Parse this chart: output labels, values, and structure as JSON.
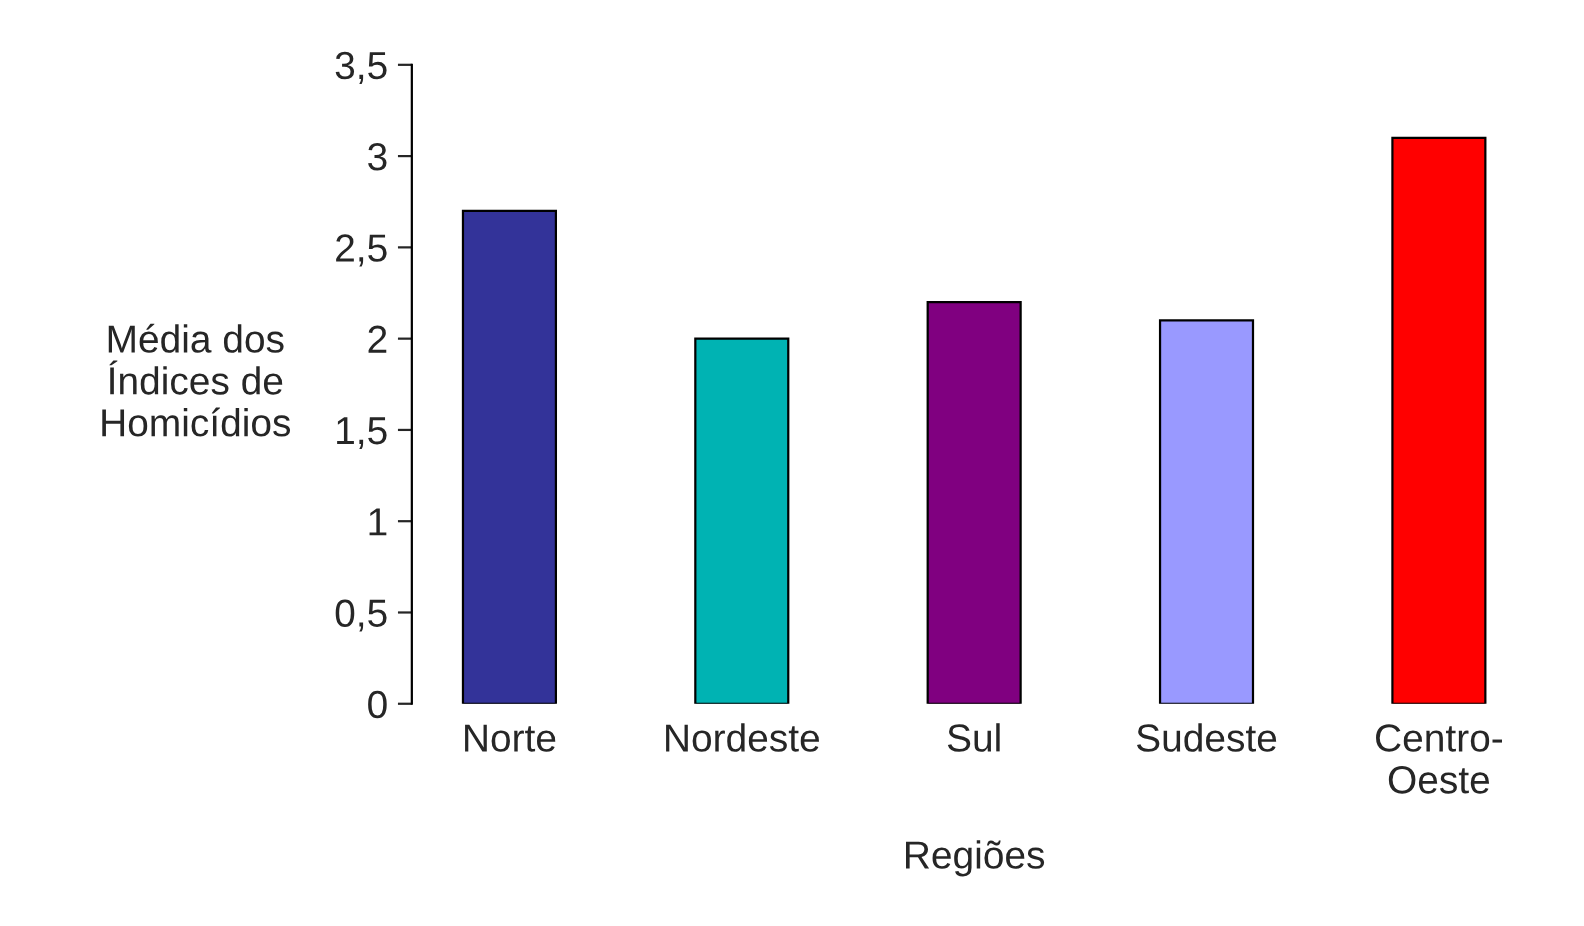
{
  "chart_data": {
    "type": "bar",
    "categories": [
      "Norte",
      "Nordeste",
      "Sul",
      "Sudeste",
      "Centro-\nOeste"
    ],
    "values": [
      2.7,
      2.0,
      2.2,
      2.1,
      3.1
    ],
    "colors": [
      "#333399",
      "#00b3b3",
      "#800080",
      "#9999ff",
      "#ff0000"
    ],
    "xlabel": "Regiões",
    "ylabel": "Média dos\nÍndices de\nHomicídios",
    "ylim": [
      0,
      3.5
    ],
    "yticks": [
      0,
      {
        "value": 0.5,
        "label": "0,5"
      },
      1,
      {
        "value": 1.5,
        "label": "1,5"
      },
      2,
      {
        "value": 2.5,
        "label": "2,5"
      },
      3,
      {
        "value": 3.5,
        "label": "3,5"
      }
    ],
    "grid": false,
    "legend": false
  }
}
